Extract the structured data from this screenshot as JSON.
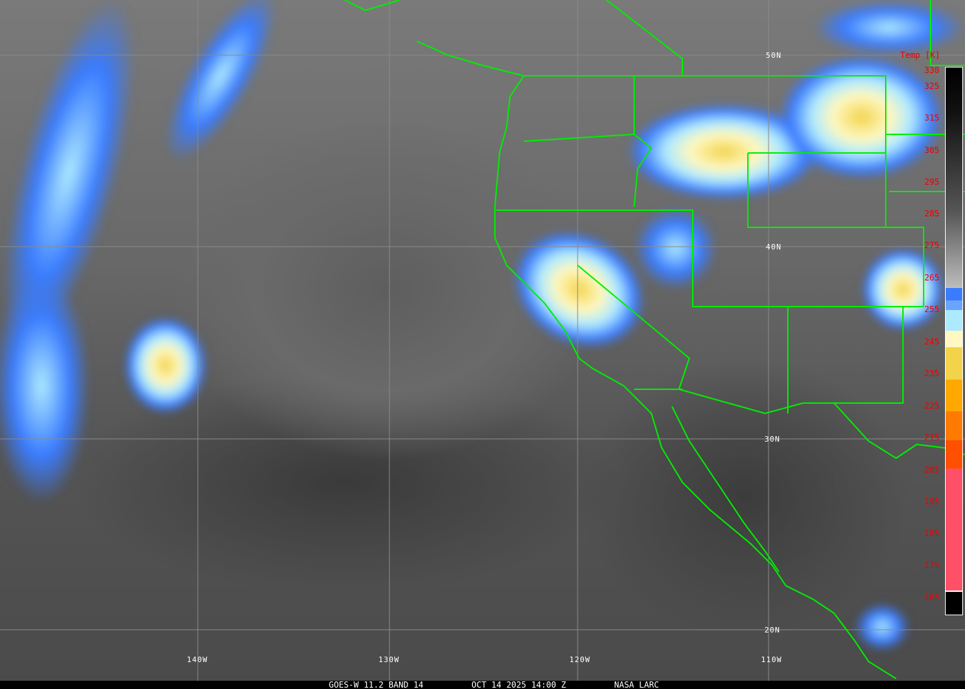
{
  "caption": {
    "satellite": "GOES-W 11.2 BAND 14",
    "datetime": "OCT 14 2025 14:00 Z",
    "source": "NASA LARC"
  },
  "latitude_labels": [
    "50N",
    "40N",
    "30N",
    "20N"
  ],
  "longitude_labels": [
    "140W",
    "130W",
    "120W",
    "110W"
  ],
  "legend": {
    "title": "Temp [K]",
    "ticks": [
      "330",
      "325",
      "315",
      "305",
      "295",
      "285",
      "275",
      "265",
      "255",
      "245",
      "235",
      "225",
      "215",
      "205",
      "195",
      "185",
      "175",
      "165"
    ],
    "colors": {
      "warm_gray": "#000000-#bdbdbd",
      "blue": "#3a7cff",
      "light_blue": "#aeeaff",
      "pale_yellow": "#fff8c0",
      "yellow": "#f2d34a",
      "orange": "#ffa800",
      "dark_orange": "#ff7a00",
      "red_orange": "#ff5000",
      "pink": "#ff5068"
    }
  },
  "colors": {
    "borders": "#00ee00",
    "labels": "#ffffff",
    "legend_text": "#ee0000"
  }
}
